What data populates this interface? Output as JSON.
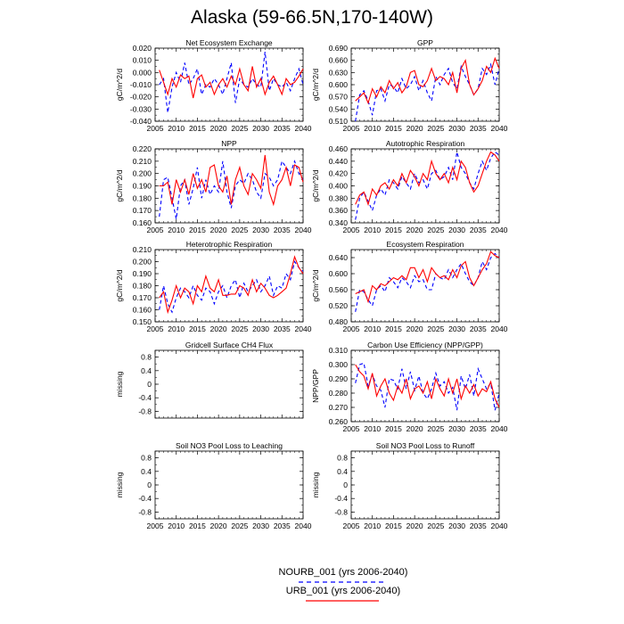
{
  "title": "Alaska (59-66.5N,170-140W)",
  "legend": {
    "nourb": {
      "label": "NOURB_001 (yrs 2006-2040)",
      "color": "#0000ff",
      "style": "dashed"
    },
    "urb": {
      "label": "URB_001 (yrs 2006-2040)",
      "color": "#ff0000",
      "style": "solid"
    }
  },
  "chart_data": [
    {
      "type": "line",
      "title": "Net Ecosystem Exchange",
      "xlabel": "",
      "ylabel": "gC/m^2/d",
      "xlim": [
        2005,
        2040
      ],
      "ylim": [
        -0.04,
        0.02
      ],
      "xticks": [
        "2005",
        "2010",
        "2015",
        "2020",
        "2025",
        "2030",
        "2035",
        "2040"
      ],
      "yticks": [
        "-0.040",
        "-0.030",
        "-0.020",
        "-0.010",
        "0.000",
        "0.010",
        "0.020"
      ],
      "x": [
        2006,
        2007,
        2008,
        2009,
        2010,
        2011,
        2012,
        2013,
        2014,
        2015,
        2016,
        2017,
        2018,
        2019,
        2020,
        2021,
        2022,
        2023,
        2024,
        2025,
        2026,
        2027,
        2028,
        2029,
        2030,
        2031,
        2032,
        2033,
        2034,
        2035,
        2036,
        2037,
        2038,
        2039,
        2040
      ],
      "series": [
        {
          "values": [
            -0.01,
            -0.005,
            -0.033,
            -0.012,
            0.0,
            -0.008,
            0.008,
            -0.01,
            -0.005,
            0.003,
            -0.018,
            -0.01,
            -0.012,
            -0.005,
            -0.01,
            -0.018,
            -0.005,
            0.008,
            -0.025,
            -0.005,
            -0.01,
            -0.012,
            -0.005,
            -0.01,
            -0.012,
            0.017,
            -0.015,
            -0.005,
            -0.01,
            -0.012,
            -0.008,
            -0.015,
            -0.005,
            0.003,
            -0.01
          ]
        },
        {
          "values": [
            0.002,
            -0.008,
            -0.018,
            -0.005,
            -0.012,
            -0.002,
            -0.005,
            -0.003,
            -0.021,
            -0.005,
            -0.002,
            -0.012,
            -0.008,
            -0.018,
            -0.01,
            -0.005,
            -0.012,
            -0.003,
            -0.01,
            0.003,
            -0.01,
            -0.015,
            0.005,
            -0.012,
            -0.005,
            -0.018,
            -0.008,
            -0.003,
            -0.01,
            -0.018,
            -0.005,
            -0.01,
            -0.008,
            -0.003,
            0.003
          ]
        }
      ]
    },
    {
      "type": "line",
      "title": "GPP",
      "xlabel": "",
      "ylabel": "gC/m^2/d",
      "xlim": [
        2005,
        2040
      ],
      "ylim": [
        0.51,
        0.69
      ],
      "xticks": [
        "2005",
        "2010",
        "2015",
        "2020",
        "2025",
        "2030",
        "2035",
        "2040"
      ],
      "yticks": [
        "0.510",
        "0.540",
        "0.570",
        "0.600",
        "0.630",
        "0.660",
        "0.690"
      ],
      "x": [
        2006,
        2007,
        2008,
        2009,
        2010,
        2011,
        2012,
        2013,
        2014,
        2015,
        2016,
        2017,
        2018,
        2019,
        2020,
        2021,
        2022,
        2023,
        2024,
        2025,
        2026,
        2027,
        2028,
        2029,
        2030,
        2031,
        2032,
        2033,
        2034,
        2035,
        2036,
        2037,
        2038,
        2039,
        2040
      ],
      "series": [
        {
          "values": [
            0.51,
            0.575,
            0.585,
            0.56,
            0.525,
            0.585,
            0.59,
            0.56,
            0.6,
            0.595,
            0.58,
            0.615,
            0.59,
            0.6,
            0.62,
            0.585,
            0.61,
            0.58,
            0.56,
            0.62,
            0.6,
            0.625,
            0.64,
            0.605,
            0.59,
            0.645,
            0.62,
            0.6,
            0.575,
            0.59,
            0.64,
            0.625,
            0.65,
            0.6,
            0.64
          ]
        },
        {
          "values": [
            0.56,
            0.57,
            0.58,
            0.555,
            0.59,
            0.57,
            0.595,
            0.58,
            0.61,
            0.59,
            0.605,
            0.58,
            0.595,
            0.63,
            0.635,
            0.6,
            0.595,
            0.61,
            0.64,
            0.61,
            0.62,
            0.615,
            0.6,
            0.63,
            0.58,
            0.64,
            0.66,
            0.6,
            0.575,
            0.59,
            0.61,
            0.645,
            0.63,
            0.665,
            0.64
          ]
        }
      ]
    },
    {
      "type": "line",
      "title": "NPP",
      "xlabel": "",
      "ylabel": "gC/m^2/d",
      "xlim": [
        2005,
        2040
      ],
      "ylim": [
        0.16,
        0.22
      ],
      "xticks": [
        "2005",
        "2010",
        "2015",
        "2020",
        "2025",
        "2030",
        "2035",
        "2040"
      ],
      "yticks": [
        "0.160",
        "0.170",
        "0.180",
        "0.190",
        "0.200",
        "0.210",
        "0.220"
      ],
      "x": [
        2006,
        2007,
        2008,
        2009,
        2010,
        2011,
        2012,
        2013,
        2014,
        2015,
        2016,
        2017,
        2018,
        2019,
        2020,
        2021,
        2022,
        2023,
        2024,
        2025,
        2026,
        2027,
        2028,
        2029,
        2030,
        2031,
        2032,
        2033,
        2034,
        2035,
        2036,
        2037,
        2038,
        2039,
        2040
      ],
      "series": [
        {
          "values": [
            0.165,
            0.195,
            0.197,
            0.18,
            0.163,
            0.19,
            0.195,
            0.175,
            0.188,
            0.205,
            0.18,
            0.195,
            0.183,
            0.19,
            0.185,
            0.21,
            0.185,
            0.172,
            0.19,
            0.195,
            0.192,
            0.2,
            0.195,
            0.185,
            0.18,
            0.2,
            0.197,
            0.19,
            0.195,
            0.21,
            0.205,
            0.2,
            0.21,
            0.2,
            0.195
          ]
        },
        {
          "values": [
            0.19,
            0.19,
            0.193,
            0.175,
            0.195,
            0.185,
            0.195,
            0.183,
            0.2,
            0.188,
            0.195,
            0.185,
            0.205,
            0.207,
            0.19,
            0.185,
            0.198,
            0.175,
            0.195,
            0.205,
            0.19,
            0.183,
            0.2,
            0.195,
            0.188,
            0.215,
            0.185,
            0.175,
            0.19,
            0.195,
            0.205,
            0.19,
            0.207,
            0.205,
            0.193
          ]
        }
      ]
    },
    {
      "type": "line",
      "title": "Autotrophic Respiration",
      "xlabel": "",
      "ylabel": "gC/m^2/d",
      "xlim": [
        2005,
        2040
      ],
      "ylim": [
        0.34,
        0.46
      ],
      "xticks": [
        "2005",
        "2010",
        "2015",
        "2020",
        "2025",
        "2030",
        "2035",
        "2040"
      ],
      "yticks": [
        "0.340",
        "0.360",
        "0.380",
        "0.400",
        "0.420",
        "0.440",
        "0.460"
      ],
      "x": [
        2006,
        2007,
        2008,
        2009,
        2010,
        2011,
        2012,
        2013,
        2014,
        2015,
        2016,
        2017,
        2018,
        2019,
        2020,
        2021,
        2022,
        2023,
        2024,
        2025,
        2026,
        2027,
        2028,
        2029,
        2030,
        2031,
        2032,
        2033,
        2034,
        2035,
        2036,
        2037,
        2038,
        2039,
        2040
      ],
      "series": [
        {
          "values": [
            0.345,
            0.38,
            0.39,
            0.375,
            0.36,
            0.385,
            0.395,
            0.385,
            0.41,
            0.405,
            0.395,
            0.415,
            0.405,
            0.395,
            0.42,
            0.405,
            0.41,
            0.395,
            0.42,
            0.425,
            0.41,
            0.415,
            0.43,
            0.41,
            0.455,
            0.43,
            0.42,
            0.405,
            0.395,
            0.42,
            0.44,
            0.425,
            0.445,
            0.455,
            0.45
          ]
        },
        {
          "values": [
            0.37,
            0.385,
            0.39,
            0.37,
            0.395,
            0.385,
            0.4,
            0.405,
            0.395,
            0.41,
            0.4,
            0.42,
            0.405,
            0.425,
            0.415,
            0.4,
            0.42,
            0.41,
            0.44,
            0.42,
            0.41,
            0.42,
            0.405,
            0.43,
            0.41,
            0.44,
            0.43,
            0.405,
            0.39,
            0.4,
            0.42,
            0.44,
            0.455,
            0.45,
            0.44
          ]
        }
      ]
    },
    {
      "type": "line",
      "title": "Heterotrophic Respiration",
      "xlabel": "",
      "ylabel": "gC/m^2/d",
      "xlim": [
        2005,
        2040
      ],
      "ylim": [
        0.15,
        0.21
      ],
      "xticks": [
        "2005",
        "2010",
        "2015",
        "2020",
        "2025",
        "2030",
        "2035",
        "2040"
      ],
      "yticks": [
        "0.150",
        "0.160",
        "0.170",
        "0.180",
        "0.190",
        "0.200",
        "0.210"
      ],
      "x": [
        2006,
        2007,
        2008,
        2009,
        2010,
        2011,
        2012,
        2013,
        2014,
        2015,
        2016,
        2017,
        2018,
        2019,
        2020,
        2021,
        2022,
        2023,
        2024,
        2025,
        2026,
        2027,
        2028,
        2029,
        2030,
        2031,
        2032,
        2033,
        2034,
        2035,
        2036,
        2037,
        2038,
        2039,
        2040
      ],
      "series": [
        {
          "values": [
            0.16,
            0.18,
            0.165,
            0.158,
            0.17,
            0.178,
            0.175,
            0.17,
            0.18,
            0.172,
            0.168,
            0.178,
            0.175,
            0.165,
            0.175,
            0.18,
            0.17,
            0.18,
            0.185,
            0.17,
            0.182,
            0.175,
            0.18,
            0.185,
            0.175,
            0.18,
            0.188,
            0.172,
            0.18,
            0.178,
            0.19,
            0.185,
            0.2,
            0.195,
            0.192
          ]
        },
        {
          "values": [
            0.17,
            0.175,
            0.158,
            0.168,
            0.18,
            0.17,
            0.178,
            0.175,
            0.165,
            0.18,
            0.175,
            0.188,
            0.178,
            0.175,
            0.185,
            0.172,
            0.172,
            0.173,
            0.173,
            0.18,
            0.178,
            0.172,
            0.185,
            0.175,
            0.182,
            0.178,
            0.172,
            0.17,
            0.172,
            0.175,
            0.178,
            0.19,
            0.204,
            0.195,
            0.19
          ]
        }
      ]
    },
    {
      "type": "line",
      "title": "Ecosystem Respiration",
      "xlabel": "",
      "ylabel": "gC/m^2/d",
      "xlim": [
        2005,
        2040
      ],
      "ylim": [
        0.48,
        0.66
      ],
      "xticks": [
        "2005",
        "2010",
        "2015",
        "2020",
        "2025",
        "2030",
        "2035",
        "2040"
      ],
      "yticks": [
        "0.480",
        "0.520",
        "0.560",
        "0.600",
        "0.640"
      ],
      "x": [
        2006,
        2007,
        2008,
        2009,
        2010,
        2011,
        2012,
        2013,
        2014,
        2015,
        2016,
        2017,
        2018,
        2019,
        2020,
        2021,
        2022,
        2023,
        2024,
        2025,
        2026,
        2027,
        2028,
        2029,
        2030,
        2031,
        2032,
        2033,
        2034,
        2035,
        2036,
        2037,
        2038,
        2039,
        2040
      ],
      "series": [
        {
          "values": [
            0.505,
            0.56,
            0.555,
            0.535,
            0.52,
            0.56,
            0.57,
            0.555,
            0.59,
            0.58,
            0.565,
            0.59,
            0.58,
            0.565,
            0.595,
            0.58,
            0.585,
            0.56,
            0.56,
            0.6,
            0.59,
            0.585,
            0.61,
            0.59,
            0.61,
            0.625,
            0.6,
            0.58,
            0.57,
            0.59,
            0.63,
            0.61,
            0.64,
            0.65,
            0.64
          ]
        },
        {
          "values": [
            0.55,
            0.555,
            0.56,
            0.53,
            0.57,
            0.56,
            0.575,
            0.57,
            0.58,
            0.59,
            0.585,
            0.595,
            0.585,
            0.615,
            0.615,
            0.59,
            0.61,
            0.58,
            0.615,
            0.6,
            0.59,
            0.595,
            0.585,
            0.61,
            0.59,
            0.62,
            0.63,
            0.59,
            0.57,
            0.59,
            0.61,
            0.625,
            0.655,
            0.645,
            0.64
          ]
        }
      ]
    },
    {
      "type": "line",
      "title": "Gridcell Surface CH4 Flux",
      "xlabel": "",
      "ylabel": "missing",
      "xlim": [
        2005,
        2040
      ],
      "ylim": [
        -1,
        1
      ],
      "xticks": [],
      "yticks": [
        "-0.8",
        "-0.4",
        "0",
        "0.4",
        "0.8"
      ],
      "x": [],
      "series": []
    },
    {
      "type": "line",
      "title": "Carbon Use Efficiency (NPP/GPP)",
      "xlabel": "",
      "ylabel": "NPP/GPP",
      "xlim": [
        2005,
        2040
      ],
      "ylim": [
        0.26,
        0.31
      ],
      "xticks": [
        "2005",
        "2010",
        "2015",
        "2020",
        "2025",
        "2030",
        "2035",
        "2040"
      ],
      "yticks": [
        "0.260",
        "0.270",
        "0.280",
        "0.290",
        "0.300",
        "0.310"
      ],
      "x": [
        2006,
        2007,
        2008,
        2009,
        2010,
        2011,
        2012,
        2013,
        2014,
        2015,
        2016,
        2017,
        2018,
        2019,
        2020,
        2021,
        2022,
        2023,
        2024,
        2025,
        2026,
        2027,
        2028,
        2029,
        2030,
        2031,
        2032,
        2033,
        2034,
        2035,
        2036,
        2037,
        2038,
        2039,
        2040
      ],
      "series": [
        {
          "values": [
            0.287,
            0.3,
            0.301,
            0.285,
            0.293,
            0.285,
            0.282,
            0.27,
            0.29,
            0.289,
            0.283,
            0.297,
            0.283,
            0.295,
            0.282,
            0.292,
            0.28,
            0.276,
            0.283,
            0.294,
            0.285,
            0.288,
            0.28,
            0.284,
            0.268,
            0.292,
            0.283,
            0.293,
            0.278,
            0.297,
            0.29,
            0.283,
            0.287,
            0.268,
            0.28
          ]
        },
        {
          "values": [
            0.3,
            0.295,
            0.292,
            0.283,
            0.294,
            0.278,
            0.285,
            0.29,
            0.28,
            0.275,
            0.285,
            0.28,
            0.29,
            0.276,
            0.283,
            0.285,
            0.28,
            0.288,
            0.276,
            0.29,
            0.283,
            0.278,
            0.29,
            0.28,
            0.29,
            0.276,
            0.285,
            0.28,
            0.286,
            0.278,
            0.283,
            0.281,
            0.288,
            0.276,
            0.27
          ]
        }
      ]
    },
    {
      "type": "line",
      "title": "Soil NO3 Pool Loss to Leaching",
      "xlabel": "",
      "ylabel": "missing",
      "xlim": [
        2005,
        2040
      ],
      "ylim": [
        -1,
        1
      ],
      "xticks": [
        "2005",
        "2010",
        "2015",
        "2020",
        "2025",
        "2030",
        "2035",
        "2040"
      ],
      "yticks": [
        "-0.8",
        "-0.4",
        "0",
        "0.4",
        "0.8"
      ],
      "x": [],
      "series": []
    },
    {
      "type": "line",
      "title": "Soil NO3 Pool Loss to Runoff",
      "xlabel": "",
      "ylabel": "missing",
      "xlim": [
        2005,
        2040
      ],
      "ylim": [
        -1,
        1
      ],
      "xticks": [
        "2005",
        "2010",
        "2015",
        "2020",
        "2025",
        "2030",
        "2035",
        "2040"
      ],
      "yticks": [
        "-0.8",
        "-0.4",
        "0",
        "0.4",
        "0.8"
      ],
      "x": [],
      "series": []
    }
  ]
}
